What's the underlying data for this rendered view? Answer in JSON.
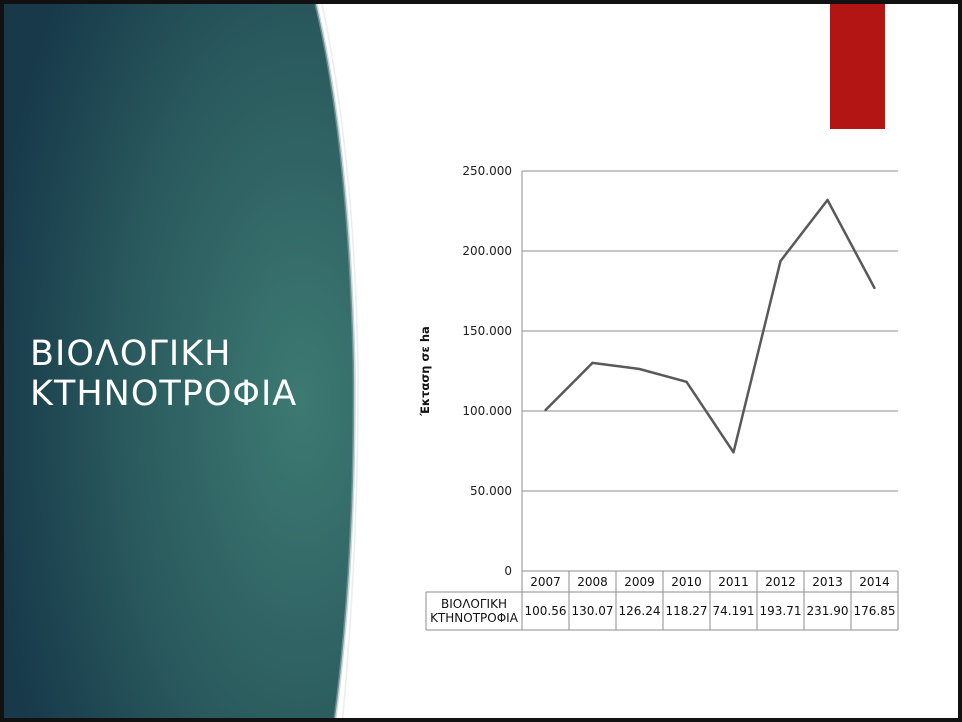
{
  "slide": {
    "title_line1": "ΒΙΟΛΟΓΙΚΗ",
    "title_line2": "ΚΤΗΝΟΤΡΟΦΙΑ",
    "accent_color": "#b31515",
    "panel_color": "#2a5a5e"
  },
  "chart_data": {
    "type": "line",
    "ylabel": "Έκταση σε ha",
    "xlabel": "",
    "ylim": [
      0,
      250000
    ],
    "yticks": [
      0,
      50000,
      100000,
      150000,
      200000,
      250000
    ],
    "ytick_labels": [
      "0",
      "50.000",
      "100.000",
      "150.000",
      "200.000",
      "250.000"
    ],
    "grid": true,
    "categories": [
      "2007",
      "2008",
      "2009",
      "2010",
      "2011",
      "2012",
      "2013",
      "2014"
    ],
    "series": [
      {
        "name": "ΒΙΟΛΟΓΙΚΗ ΚΤΗΝΟΤΡΟΦΙΑ",
        "name_lines": [
          "ΒΙΟΛΟΓΙΚΗ",
          "ΚΤΗΝΟΤΡΟΦΙΑ"
        ],
        "color": "#595959",
        "values": [
          100560,
          130070,
          126240,
          118270,
          74191,
          193710,
          231900,
          176850
        ],
        "table_labels": [
          "100.56",
          "130.07",
          "126.24",
          "118.27",
          "74.191",
          "193.71",
          "231.90",
          "176.85"
        ]
      }
    ],
    "data_table": true
  }
}
